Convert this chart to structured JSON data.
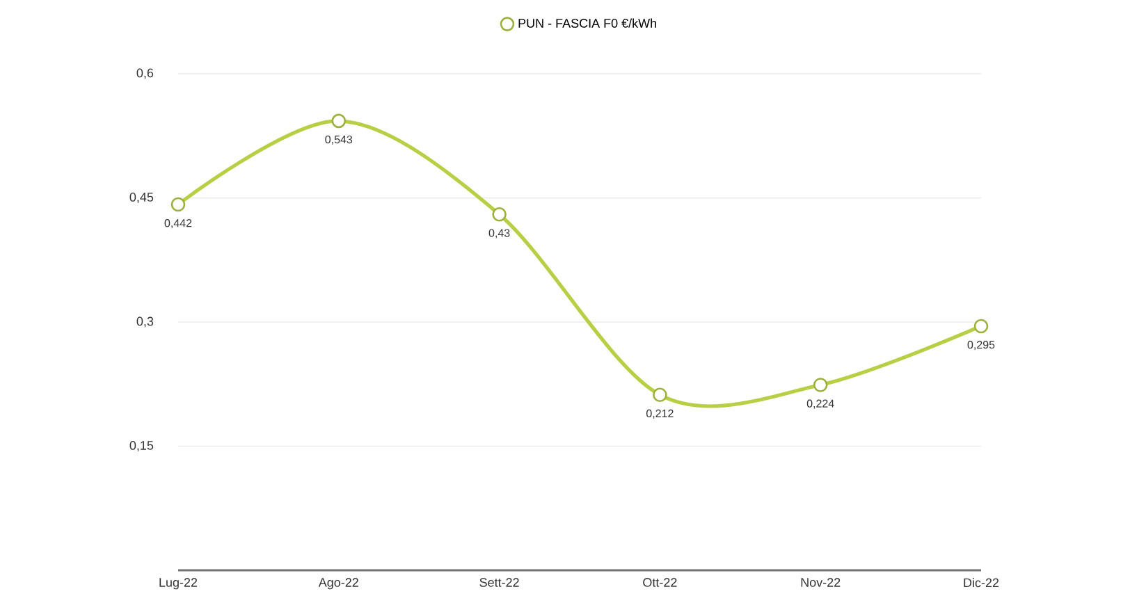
{
  "chart_data": {
    "type": "line",
    "categories": [
      "Lug-22",
      "Ago-22",
      "Sett-22",
      "Ott-22",
      "Nov-22",
      "Dic-22"
    ],
    "series": [
      {
        "name": "PUN - FASCIA F0 €/kWh",
        "color": "#b8cf45",
        "values": [
          0.442,
          0.543,
          0.43,
          0.212,
          0.224,
          0.295
        ],
        "value_labels": [
          "0,442",
          "0,543",
          "0,43",
          "0,212",
          "0,224",
          "0,295"
        ]
      }
    ],
    "ylim": [
      0,
      0.6
    ],
    "yticks": [
      {
        "value": 0.15,
        "label": "0,15"
      },
      {
        "value": 0.3,
        "label": "0,3"
      },
      {
        "value": 0.45,
        "label": "0,45"
      },
      {
        "value": 0.6,
        "label": "0,6"
      }
    ],
    "grid": "y",
    "legend": "top",
    "marker": "circle",
    "line_style": "solid"
  }
}
